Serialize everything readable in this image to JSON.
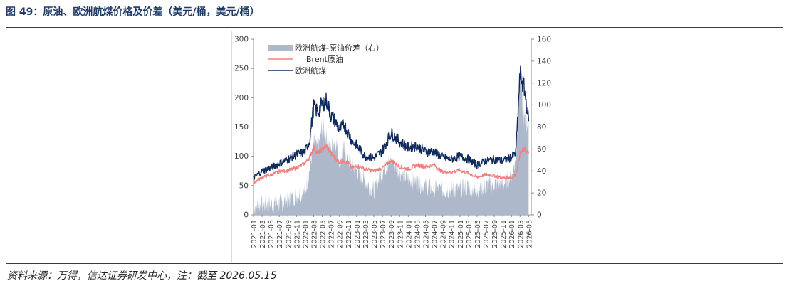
{
  "header": {
    "title": "图 49：原油、欧洲航煤价格及价差（美元/桶，美元/桶）"
  },
  "footer": {
    "source": "资料来源：万得，信达证券研发中心，注：截至 2026.05.15"
  },
  "chart_data": {
    "type": "line",
    "title": "",
    "xlabel": "",
    "ylabel": "",
    "ylim_left": [
      0,
      300
    ],
    "ylim_right": [
      0,
      160
    ],
    "y_ticks_left": [
      "0",
      "50",
      "100",
      "150",
      "200",
      "250",
      "300"
    ],
    "y_ticks_right": [
      "0",
      "20",
      "40",
      "60",
      "80",
      "100",
      "120",
      "140",
      "160"
    ],
    "x_ticks": [
      "2021-01",
      "2021-03",
      "2021-05",
      "2021-07",
      "2021-09",
      "2021-11",
      "2022-01",
      "2022-03",
      "2022-05",
      "2022-07",
      "2022-09",
      "2022-11",
      "2023-01",
      "2023-03",
      "2023-05",
      "2023-07",
      "2023-09",
      "2023-11",
      "2024-01",
      "2024-03",
      "2024-05",
      "2024-07",
      "2024-09",
      "2024-11",
      "2025-01",
      "2025-03",
      "2025-05",
      "2025-07",
      "2025-09",
      "2025-11",
      "2026-01",
      "2026-03",
      "2026-05"
    ],
    "grid": false,
    "legend_position": "top-left",
    "legend": [
      "欧洲航煤-原油价差（右）",
      "Brent原油",
      "欧洲航煤"
    ],
    "colors": {
      "spread": "#adb9ca",
      "brent": "#f08080",
      "jet": "#0f2a5c"
    },
    "series": [
      {
        "name": "欧洲航煤-原油价差（右）",
        "axis": "right",
        "style": "area",
        "x": [
          "2021-01",
          "2021-03",
          "2021-05",
          "2021-07",
          "2021-09",
          "2021-11",
          "2022-01",
          "2022-02",
          "2022-03",
          "2022-04",
          "2022-05",
          "2022-06",
          "2022-07",
          "2022-08",
          "2022-09",
          "2022-10",
          "2022-11",
          "2022-12",
          "2023-01",
          "2023-03",
          "2023-05",
          "2023-07",
          "2023-09",
          "2023-11",
          "2024-01",
          "2024-03",
          "2024-05",
          "2024-07",
          "2024-09",
          "2024-11",
          "2025-01",
          "2025-03",
          "2025-05",
          "2025-07",
          "2025-09",
          "2025-11",
          "2026-01",
          "2026-02",
          "2026-03",
          "2026-04",
          "2026-05"
        ],
        "values": [
          8,
          9,
          10,
          10,
          13,
          18,
          21,
          40,
          65,
          60,
          80,
          70,
          60,
          70,
          50,
          60,
          50,
          45,
          40,
          30,
          22,
          40,
          50,
          38,
          33,
          30,
          26,
          24,
          22,
          23,
          24,
          25,
          23,
          26,
          29,
          28,
          34,
          50,
          125,
          85,
          85
        ]
      },
      {
        "name": "Brent原油",
        "axis": "left",
        "style": "line",
        "x": [
          "2021-01",
          "2021-03",
          "2021-05",
          "2021-07",
          "2021-09",
          "2021-11",
          "2022-01",
          "2022-02",
          "2022-03",
          "2022-04",
          "2022-05",
          "2022-06",
          "2022-07",
          "2022-08",
          "2022-09",
          "2022-10",
          "2022-11",
          "2022-12",
          "2023-01",
          "2023-03",
          "2023-05",
          "2023-07",
          "2023-09",
          "2023-11",
          "2024-01",
          "2024-03",
          "2024-05",
          "2024-07",
          "2024-09",
          "2024-11",
          "2025-01",
          "2025-03",
          "2025-05",
          "2025-07",
          "2025-09",
          "2025-11",
          "2026-01",
          "2026-02",
          "2026-03",
          "2026-04",
          "2026-05"
        ],
        "values": [
          55,
          64,
          68,
          74,
          76,
          80,
          88,
          98,
          115,
          105,
          112,
          118,
          105,
          97,
          90,
          93,
          88,
          80,
          84,
          78,
          75,
          80,
          93,
          82,
          78,
          85,
          82,
          85,
          73,
          73,
          76,
          71,
          64,
          69,
          67,
          63,
          64,
          68,
          105,
          112,
          105
        ]
      },
      {
        "name": "欧洲航煤",
        "axis": "left",
        "style": "line",
        "x": [
          "2021-01",
          "2021-03",
          "2021-05",
          "2021-07",
          "2021-09",
          "2021-11",
          "2022-01",
          "2022-02",
          "2022-03",
          "2022-04",
          "2022-05",
          "2022-06",
          "2022-07",
          "2022-08",
          "2022-09",
          "2022-10",
          "2022-11",
          "2022-12",
          "2023-01",
          "2023-03",
          "2023-05",
          "2023-07",
          "2023-09",
          "2023-11",
          "2024-01",
          "2024-03",
          "2024-05",
          "2024-07",
          "2024-09",
          "2024-11",
          "2025-01",
          "2025-03",
          "2025-05",
          "2025-07",
          "2025-09",
          "2025-11",
          "2026-01",
          "2026-02",
          "2026-03",
          "2026-04",
          "2026-05"
        ],
        "values": [
          63,
          75,
          80,
          88,
          95,
          103,
          108,
          125,
          185,
          175,
          190,
          195,
          170,
          160,
          145,
          155,
          140,
          125,
          118,
          100,
          97,
          110,
          140,
          125,
          115,
          118,
          108,
          108,
          98,
          95,
          100,
          95,
          85,
          92,
          95,
          92,
          98,
          105,
          240,
          215,
          160
        ]
      }
    ]
  }
}
